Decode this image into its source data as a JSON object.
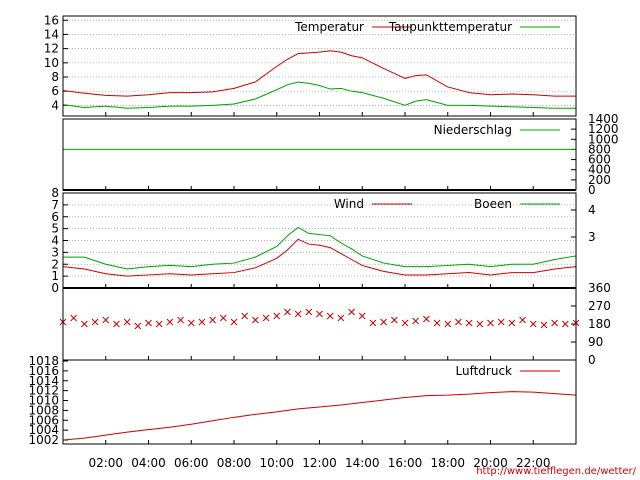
{
  "source_url": "http://www.tiefflegen.de/wetter/",
  "chart_data": [
    {
      "type": "line",
      "series": [
        {
          "name": "Temperatur",
          "color": "#cc0000",
          "x": [
            0,
            1,
            2,
            3,
            4,
            5,
            6,
            7,
            8,
            9,
            10,
            10.5,
            11,
            11.5,
            12,
            12.5,
            13,
            13.5,
            14,
            15,
            16,
            16.5,
            17,
            18,
            19,
            20,
            21,
            22,
            23,
            24
          ],
          "y": [
            6.1,
            5.7,
            5.4,
            5.3,
            5.5,
            5.8,
            5.8,
            5.9,
            6.4,
            7.3,
            9.5,
            10.5,
            11.3,
            11.4,
            11.5,
            11.7,
            11.5,
            11.0,
            10.7,
            9.2,
            7.8,
            8.2,
            8.3,
            6.6,
            5.8,
            5.5,
            5.6,
            5.5,
            5.3,
            5.3
          ]
        },
        {
          "name": "Taupunkttemperatur",
          "color": "#00a000",
          "x": [
            0,
            1,
            2,
            3,
            4,
            5,
            6,
            7,
            8,
            9,
            10,
            10.5,
            11,
            11.5,
            12,
            12.5,
            13,
            13.5,
            14,
            15,
            16,
            16.5,
            17,
            18,
            19,
            20,
            21,
            22,
            23,
            24
          ],
          "y": [
            4.1,
            3.7,
            3.9,
            3.6,
            3.7,
            3.9,
            3.9,
            4.0,
            4.2,
            4.9,
            6.2,
            6.9,
            7.3,
            7.1,
            6.8,
            6.3,
            6.4,
            6.0,
            5.8,
            5.0,
            4.0,
            4.6,
            4.8,
            4.0,
            4.0,
            3.9,
            3.8,
            3.7,
            3.6,
            3.6
          ]
        }
      ],
      "xlim": [
        0,
        24
      ],
      "ylim": [
        2.5,
        16.6
      ],
      "yticks": [
        4,
        6,
        8,
        10,
        12,
        14,
        16
      ],
      "grid": true,
      "legend_position": "top-right"
    },
    {
      "type": "line",
      "series": [
        {
          "name": "Niederschlag",
          "color": "#00a000",
          "x": [
            0,
            24
          ],
          "y": [
            800,
            800
          ]
        }
      ],
      "xlim": [
        0,
        24
      ],
      "ylim": [
        0,
        1400
      ],
      "yticks_right": [
        0,
        200,
        400,
        600,
        800,
        1000,
        1200,
        1400
      ],
      "legend_position": "top-right"
    },
    {
      "type": "line",
      "series": [
        {
          "name": "Wind",
          "color": "#cc0000",
          "x": [
            0,
            1,
            2,
            3,
            4,
            5,
            6,
            7,
            8,
            9,
            10,
            10.5,
            11,
            11.5,
            12,
            12.5,
            13,
            13.5,
            14,
            15,
            16,
            17,
            18,
            19,
            20,
            21,
            22,
            23,
            24
          ],
          "y": [
            1.8,
            1.6,
            1.2,
            1.0,
            1.1,
            1.2,
            1.1,
            1.2,
            1.3,
            1.7,
            2.5,
            3.2,
            4.1,
            3.7,
            3.6,
            3.4,
            2.9,
            2.4,
            1.9,
            1.4,
            1.1,
            1.1,
            1.2,
            1.3,
            1.1,
            1.3,
            1.3,
            1.6,
            1.8
          ]
        },
        {
          "name": "Boeen",
          "color": "#00a000",
          "x": [
            0,
            1,
            2,
            3,
            4,
            5,
            6,
            7,
            8,
            9,
            10,
            10.5,
            11,
            11.5,
            12,
            12.5,
            13,
            13.5,
            14,
            15,
            16,
            17,
            18,
            19,
            20,
            21,
            22,
            23,
            24
          ],
          "y": [
            2.6,
            2.6,
            2.0,
            1.6,
            1.8,
            1.9,
            1.8,
            2.0,
            2.1,
            2.6,
            3.5,
            4.4,
            5.1,
            4.6,
            4.5,
            4.4,
            3.8,
            3.3,
            2.7,
            2.1,
            1.8,
            1.8,
            1.9,
            2.0,
            1.8,
            2.0,
            2.0,
            2.4,
            2.7
          ]
        }
      ],
      "xlim": [
        0,
        24
      ],
      "ylim": [
        0,
        8
      ],
      "yticks": [
        0,
        1,
        2,
        3,
        4,
        5,
        6,
        7,
        8
      ],
      "yticks_right": [
        3,
        4
      ],
      "grid": true,
      "legend_position": "top-right"
    },
    {
      "type": "scatter",
      "marker": "x",
      "color": "#cc0000",
      "x": [
        0,
        0.5,
        1,
        1.5,
        2,
        2.5,
        3,
        3.5,
        4,
        4.5,
        5,
        5.5,
        6,
        6.5,
        7,
        7.5,
        8,
        8.5,
        9,
        9.5,
        10,
        10.5,
        11,
        11.5,
        12,
        12.5,
        13,
        13.5,
        14,
        14.5,
        15,
        15.5,
        16,
        16.5,
        17,
        17.5,
        18,
        18.5,
        19,
        19.5,
        20,
        20.5,
        21,
        21.5,
        22,
        22.5,
        23,
        23.5,
        24
      ],
      "y": [
        190,
        210,
        180,
        190,
        200,
        180,
        190,
        170,
        185,
        180,
        190,
        200,
        185,
        190,
        200,
        210,
        190,
        220,
        200,
        210,
        220,
        240,
        230,
        240,
        230,
        220,
        210,
        240,
        220,
        185,
        190,
        200,
        185,
        195,
        205,
        185,
        180,
        190,
        185,
        180,
        185,
        190,
        185,
        200,
        180,
        175,
        185,
        180,
        185
      ],
      "ylim": [
        0,
        360
      ],
      "yticks_right": [
        0,
        90,
        180,
        270,
        360
      ]
    },
    {
      "type": "line",
      "series": [
        {
          "name": "Luftdruck",
          "color": "#cc0000",
          "x": [
            0,
            1,
            2,
            3,
            4,
            5,
            6,
            7,
            8,
            9,
            10,
            11,
            12,
            13,
            14,
            15,
            16,
            17,
            18,
            19,
            20,
            21,
            22,
            23,
            24
          ],
          "y": [
            1002.0,
            1002.4,
            1003.0,
            1003.6,
            1004.1,
            1004.6,
            1005.2,
            1005.9,
            1006.6,
            1007.2,
            1007.7,
            1008.3,
            1008.7,
            1009.1,
            1009.6,
            1010.1,
            1010.6,
            1011.0,
            1011.1,
            1011.3,
            1011.6,
            1011.8,
            1011.7,
            1011.4,
            1011.1
          ]
        }
      ],
      "xlim": [
        0,
        24
      ],
      "ylim": [
        1001.2,
        1018.2
      ],
      "yticks": [
        1002,
        1004,
        1006,
        1008,
        1010,
        1012,
        1014,
        1016,
        1018
      ],
      "legend_position": "top-right"
    }
  ],
  "x_axis": {
    "tick_labels": [
      "02:00",
      "04:00",
      "06:00",
      "08:00",
      "10:00",
      "12:00",
      "14:00",
      "16:00",
      "18:00",
      "20:00",
      "22:00"
    ],
    "tick_positions": [
      2,
      4,
      6,
      8,
      10,
      12,
      14,
      16,
      18,
      20,
      22
    ],
    "range": [
      0,
      24
    ]
  }
}
